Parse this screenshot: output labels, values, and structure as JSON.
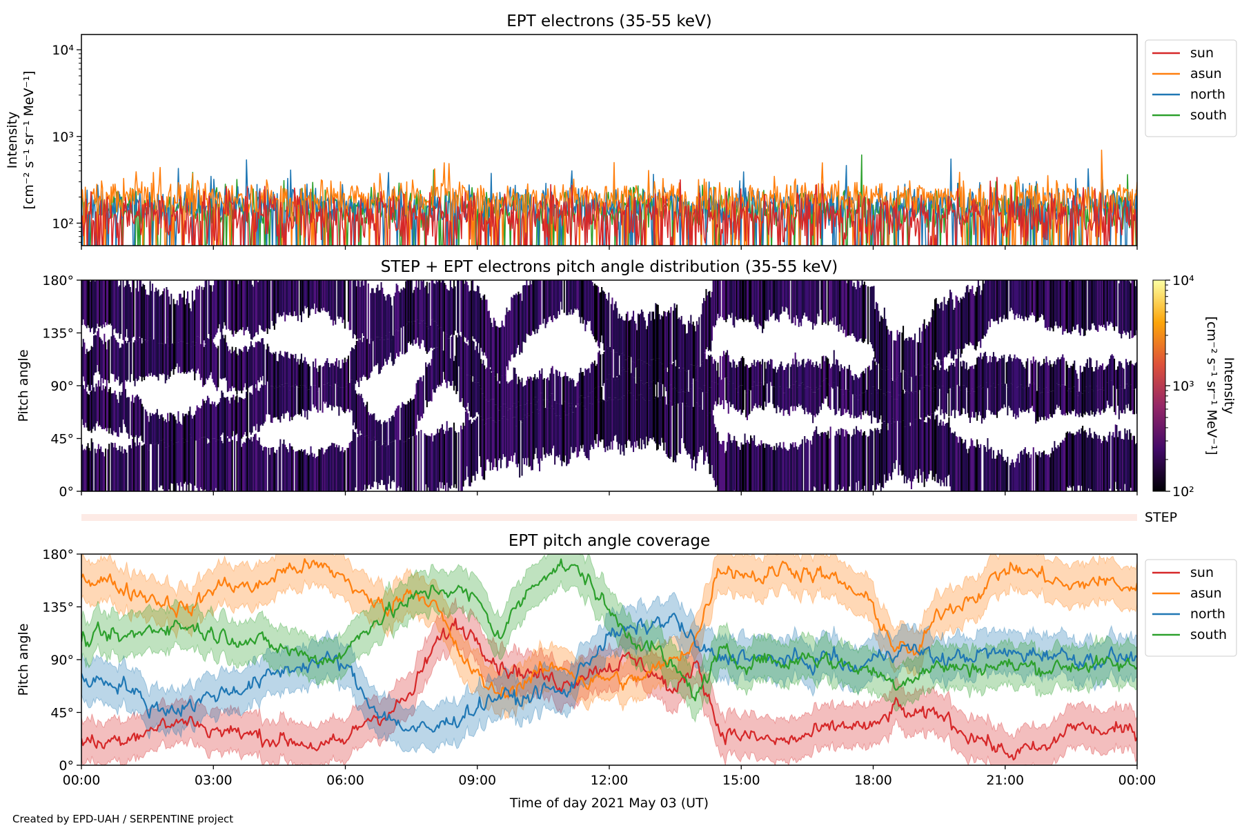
{
  "chart_data": [
    {
      "type": "line",
      "title": "EPT electrons (35-55 keV)",
      "ylabel_line1": "Intensity",
      "ylabel_line2": "[cm⁻² s⁻¹ sr⁻¹ MeV⁻¹]",
      "yscale": "log",
      "ylim": [
        55,
        15000
      ],
      "yticks": [
        {
          "value": 100,
          "label": "10²"
        },
        {
          "value": 1000,
          "label": "10³"
        },
        {
          "value": 10000,
          "label": "10⁴"
        }
      ],
      "xlim_hours": [
        0,
        24
      ],
      "legend_position": "outside-right-top",
      "series": [
        {
          "name": "sun",
          "color": "#d62728",
          "typical": 120,
          "spread": 0.28
        },
        {
          "name": "asun",
          "color": "#ff7f0e",
          "typical": 200,
          "spread": 0.2
        },
        {
          "name": "north",
          "color": "#1f77b4",
          "typical": 160,
          "spread": 0.22
        },
        {
          "name": "south",
          "color": "#2ca02c",
          "typical": 150,
          "spread": 0.22
        }
      ]
    },
    {
      "type": "heatmap",
      "title": "STEP + EPT electrons pitch angle distribution (35-55 keV)",
      "ylabel": "Pitch angle",
      "ylim": [
        0,
        180
      ],
      "yticks": [
        {
          "value": 0,
          "label": "0°"
        },
        {
          "value": 45,
          "label": "45°"
        },
        {
          "value": 90,
          "label": "90°"
        },
        {
          "value": 135,
          "label": "135°"
        },
        {
          "value": 180,
          "label": "180°"
        }
      ],
      "colorbar": {
        "label_line1": "Intensity",
        "label_line2": "[cm⁻² s⁻¹ sr⁻¹ MeV⁻¹]",
        "scale": "log",
        "range": [
          100,
          10000
        ],
        "ticks": [
          {
            "value": 100,
            "label": "10²"
          },
          {
            "value": 1000,
            "label": "10³"
          },
          {
            "value": 10000,
            "label": "10⁴"
          }
        ],
        "colormap": [
          "#000004",
          "#420a68",
          "#932667",
          "#dd513a",
          "#fca50a",
          "#fcffa4"
        ]
      }
    },
    {
      "type": "bar",
      "label": "STEP",
      "color": "#fdeae5"
    },
    {
      "type": "area",
      "title": "EPT pitch angle coverage",
      "ylabel": "Pitch angle",
      "ylim": [
        0,
        180
      ],
      "yticks": [
        {
          "value": 0,
          "label": "0°"
        },
        {
          "value": 45,
          "label": "45°"
        },
        {
          "value": 90,
          "label": "90°"
        },
        {
          "value": 135,
          "label": "135°"
        },
        {
          "value": 180,
          "label": "180°"
        }
      ],
      "xlabel": "Time of day 2021 May 03 (UT)",
      "xticks": [
        {
          "hour": 0,
          "label": "00:00"
        },
        {
          "hour": 3,
          "label": "03:00"
        },
        {
          "hour": 6,
          "label": "06:00"
        },
        {
          "hour": 9,
          "label": "09:00"
        },
        {
          "hour": 12,
          "label": "12:00"
        },
        {
          "hour": 15,
          "label": "15:00"
        },
        {
          "hour": 18,
          "label": "18:00"
        },
        {
          "hour": 21,
          "label": "21:00"
        },
        {
          "hour": 24,
          "label": "00:00"
        }
      ],
      "legend_position": "outside-right-top",
      "series": [
        {
          "name": "sun",
          "color": "#d62728",
          "hours": [
            0,
            0.5,
            1,
            1.5,
            2,
            2.5,
            3,
            3.5,
            4,
            4.5,
            5,
            5.5,
            6,
            6.5,
            7,
            7.5,
            8,
            8.5,
            9,
            9.5,
            10,
            10.5,
            11,
            11.5,
            12,
            12.5,
            13,
            13.5,
            14,
            14.5,
            15,
            15.5,
            16,
            16.5,
            17,
            17.5,
            18,
            18.5,
            19,
            19.5,
            20,
            20.5,
            21,
            21.5,
            22,
            22.5,
            23,
            23.5,
            24
          ],
          "values": [
            22,
            18,
            25,
            30,
            35,
            38,
            30,
            28,
            25,
            22,
            20,
            15,
            20,
            40,
            45,
            60,
            100,
            120,
            110,
            85,
            80,
            75,
            70,
            80,
            85,
            90,
            80,
            60,
            90,
            30,
            25,
            22,
            20,
            25,
            30,
            35,
            30,
            50,
            40,
            45,
            30,
            22,
            10,
            12,
            14,
            35,
            30,
            28,
            30
          ]
        },
        {
          "name": "asun",
          "color": "#ff7f0e",
          "hours": [
            0,
            0.5,
            1,
            1.5,
            2,
            2.5,
            3,
            3.5,
            4,
            4.5,
            5,
            5.5,
            6,
            6.5,
            7,
            7.5,
            8,
            8.5,
            9,
            9.5,
            10,
            10.5,
            11,
            11.5,
            12,
            12.5,
            13,
            13.5,
            14,
            14.5,
            15,
            15.5,
            16,
            16.5,
            17,
            17.5,
            18,
            18.5,
            19,
            19.5,
            20,
            20.5,
            21,
            21.5,
            22,
            22.5,
            23,
            23.5,
            24
          ],
          "values": [
            160,
            158,
            150,
            145,
            138,
            132,
            152,
            155,
            150,
            165,
            170,
            168,
            160,
            140,
            135,
            150,
            140,
            100,
            75,
            60,
            70,
            80,
            85,
            70,
            75,
            70,
            80,
            90,
            110,
            170,
            165,
            160,
            170,
            165,
            160,
            150,
            135,
            100,
            95,
            130,
            140,
            150,
            168,
            165,
            160,
            150,
            158,
            155,
            150
          ]
        },
        {
          "name": "north",
          "color": "#1f77b4",
          "hours": [
            0,
            0.5,
            1,
            1.5,
            2,
            2.5,
            3,
            3.5,
            4,
            4.5,
            5,
            5.5,
            6,
            6.5,
            7,
            7.5,
            8,
            8.5,
            9,
            9.5,
            10,
            10.5,
            11,
            11.5,
            12,
            12.5,
            13,
            13.5,
            14,
            14.5,
            15,
            15.5,
            16,
            16.5,
            17,
            17.5,
            18,
            18.5,
            19,
            19.5,
            20,
            20.5,
            21,
            21.5,
            22,
            22.5,
            23,
            23.5,
            24
          ],
          "values": [
            75,
            72,
            70,
            50,
            48,
            52,
            60,
            65,
            70,
            80,
            85,
            90,
            85,
            55,
            40,
            30,
            30,
            40,
            50,
            60,
            55,
            65,
            60,
            90,
            110,
            115,
            120,
            125,
            100,
            90,
            95,
            88,
            92,
            85,
            95,
            80,
            90,
            100,
            98,
            90,
            92,
            95,
            95,
            95,
            96,
            92,
            90,
            92,
            92
          ]
        },
        {
          "name": "south",
          "color": "#2ca02c",
          "hours": [
            0,
            0.5,
            1,
            1.5,
            2,
            2.5,
            3,
            3.5,
            4,
            4.5,
            5,
            5.5,
            6,
            6.5,
            7,
            7.5,
            8,
            8.5,
            9,
            9.5,
            10,
            10.5,
            11,
            11.5,
            12,
            12.5,
            13,
            13.5,
            14,
            14.5,
            15,
            15.5,
            16,
            16.5,
            17,
            17.5,
            18,
            18.5,
            19,
            19.5,
            20,
            20.5,
            21,
            21.5,
            22,
            22.5,
            23,
            23.5,
            24
          ],
          "values": [
            105,
            110,
            108,
            115,
            120,
            118,
            112,
            110,
            105,
            100,
            95,
            90,
            95,
            120,
            130,
            140,
            150,
            150,
            140,
            110,
            140,
            165,
            170,
            160,
            130,
            110,
            100,
            80,
            60,
            95,
            88,
            92,
            85,
            95,
            88,
            85,
            80,
            70,
            78,
            85,
            82,
            84,
            85,
            84,
            83,
            85,
            86,
            84,
            85
          ]
        }
      ]
    }
  ],
  "footer": "Created by EPD-UAH / SERPENTINE project"
}
